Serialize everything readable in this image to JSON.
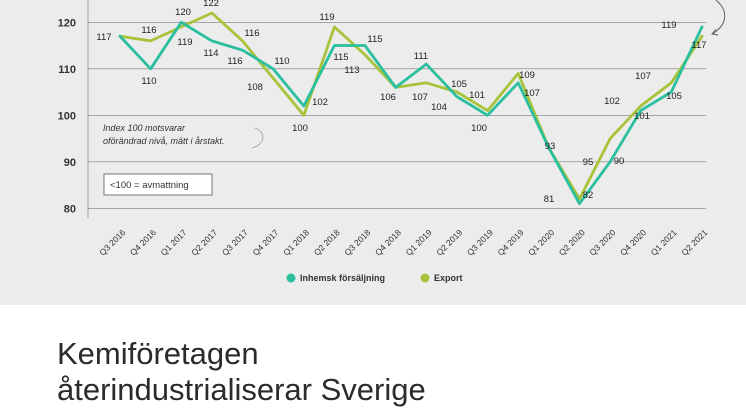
{
  "chart_data": {
    "type": "line",
    "categories": [
      "Q3 2016",
      "Q4 2016",
      "Q1 2017",
      "Q2 2017",
      "Q3 2017",
      "Q4 2017",
      "Q1 2018",
      "Q2 2018",
      "Q3 2018",
      "Q4 2018",
      "Q1 2019",
      "Q2 2019",
      "Q3 2019",
      "Q4 2019",
      "Q1 2020",
      "Q2 2020",
      "Q3 2020",
      "Q4 2020",
      "Q1 2021",
      "Q2 2021"
    ],
    "series": [
      {
        "name": "Inhemsk försäljning",
        "color": "#2bbf9f",
        "values": [
          117,
          110,
          120,
          116,
          114,
          110,
          102,
          115,
          115,
          106,
          111,
          104,
          100,
          107,
          93,
          81,
          90,
          101,
          105,
          119
        ]
      },
      {
        "name": "Export",
        "color": "#a7c33a",
        "values": [
          117,
          116,
          119,
          122,
          116,
          108,
          100,
          119,
          113,
          106,
          107,
          105,
          101,
          109,
          93,
          82,
          95,
          102,
          107,
          117
        ]
      }
    ],
    "point_labels": [
      "117",
      "116",
      "110",
      "120",
      "119",
      "122",
      "116",
      "114",
      "116",
      "110",
      "108",
      "102",
      "100",
      "119",
      "115",
      "115",
      "113",
      "106",
      "107",
      "111",
      "104",
      "105",
      "101",
      "100",
      "109",
      "107",
      "93",
      "81",
      "82",
      "95",
      "90",
      "102",
      "101",
      "107",
      "105",
      "119",
      "117"
    ],
    "y_ticks": [
      "80",
      "90",
      "100",
      "110",
      "120"
    ],
    "ylim": [
      76,
      125
    ],
    "grid": true,
    "legend_position": "bottom-center",
    "annotation": [
      "Index 100 motsvarar",
      "oförändrad nivå, mätt i årstakt."
    ],
    "boxed_note": "<100 = avmattning"
  },
  "headline": {
    "line1": "Kemiföretagen",
    "line2": "återindustrialiserar Sverige"
  }
}
